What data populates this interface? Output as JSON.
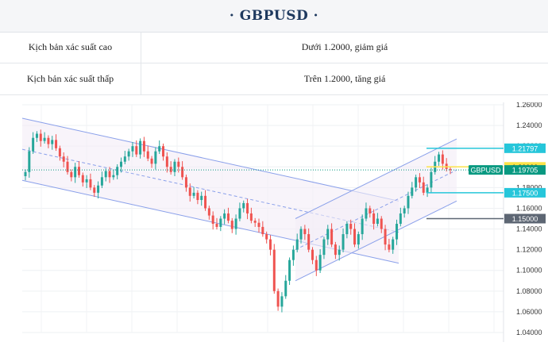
{
  "page_title": "GBPUSD",
  "scenarios": [
    {
      "label": "Kịch bản xác suất cao",
      "value": "Dưới 1.2000, giảm giá"
    },
    {
      "label": "Kịch bản xác suất thấp",
      "value": "Trên 1.2000, tăng giá"
    }
  ],
  "chart_data": {
    "type": "candlestick",
    "symbol": "GBPUSD",
    "ylim": [
      1.04,
      1.26
    ],
    "y_ticks": [
      "1.26000",
      "1.24000",
      "1.22000",
      "1.20000",
      "1.18000",
      "1.16000",
      "1.14000",
      "1.12000",
      "1.10000",
      "1.08000",
      "1.06000",
      "1.04000"
    ],
    "grid": true,
    "current_price": 1.19705,
    "current_label": "GBPUSD",
    "current_value_label": "1.19705",
    "levels": [
      {
        "value": 1.21797,
        "label": "1.21797",
        "color": "#26c6da"
      },
      {
        "value": 1.2,
        "label": "1.20000",
        "color": "#fbe34a"
      },
      {
        "value": 1.175,
        "label": "1.17500",
        "color": "#26c6da"
      },
      {
        "value": 1.15,
        "label": "1.15000",
        "color": "#5d6673"
      }
    ],
    "colors": {
      "up": "#26a69a",
      "down": "#ef5350",
      "channel": "#8aa0ea",
      "current": "#089981"
    },
    "closes": [
      1.195,
      1.215,
      1.228,
      1.232,
      1.225,
      1.228,
      1.222,
      1.226,
      1.218,
      1.21,
      1.205,
      1.195,
      1.19,
      1.2,
      1.192,
      1.185,
      1.188,
      1.18,
      1.175,
      1.182,
      1.19,
      1.196,
      1.19,
      1.192,
      1.2,
      1.205,
      1.21,
      1.215,
      1.22,
      1.212,
      1.225,
      1.215,
      1.208,
      1.203,
      1.215,
      1.22,
      1.21,
      1.2,
      1.195,
      1.205,
      1.2,
      1.19,
      1.18,
      1.172,
      1.175,
      1.168,
      1.172,
      1.16,
      1.153,
      1.145,
      1.142,
      1.15,
      1.155,
      1.148,
      1.14,
      1.15,
      1.16,
      1.165,
      1.155,
      1.148,
      1.146,
      1.142,
      1.135,
      1.13,
      1.12,
      1.08,
      1.065,
      1.075,
      1.09,
      1.11,
      1.12,
      1.13,
      1.14,
      1.135,
      1.12,
      1.11,
      1.1,
      1.115,
      1.13,
      1.14,
      1.125,
      1.115,
      1.12,
      1.135,
      1.145,
      1.14,
      1.125,
      1.135,
      1.15,
      1.16,
      1.155,
      1.145,
      1.15,
      1.14,
      1.125,
      1.12,
      1.13,
      1.145,
      1.155,
      1.16,
      1.172,
      1.18,
      1.19,
      1.185,
      1.175,
      1.18,
      1.195,
      1.205,
      1.212,
      1.203,
      1.198,
      1.197
    ]
  }
}
